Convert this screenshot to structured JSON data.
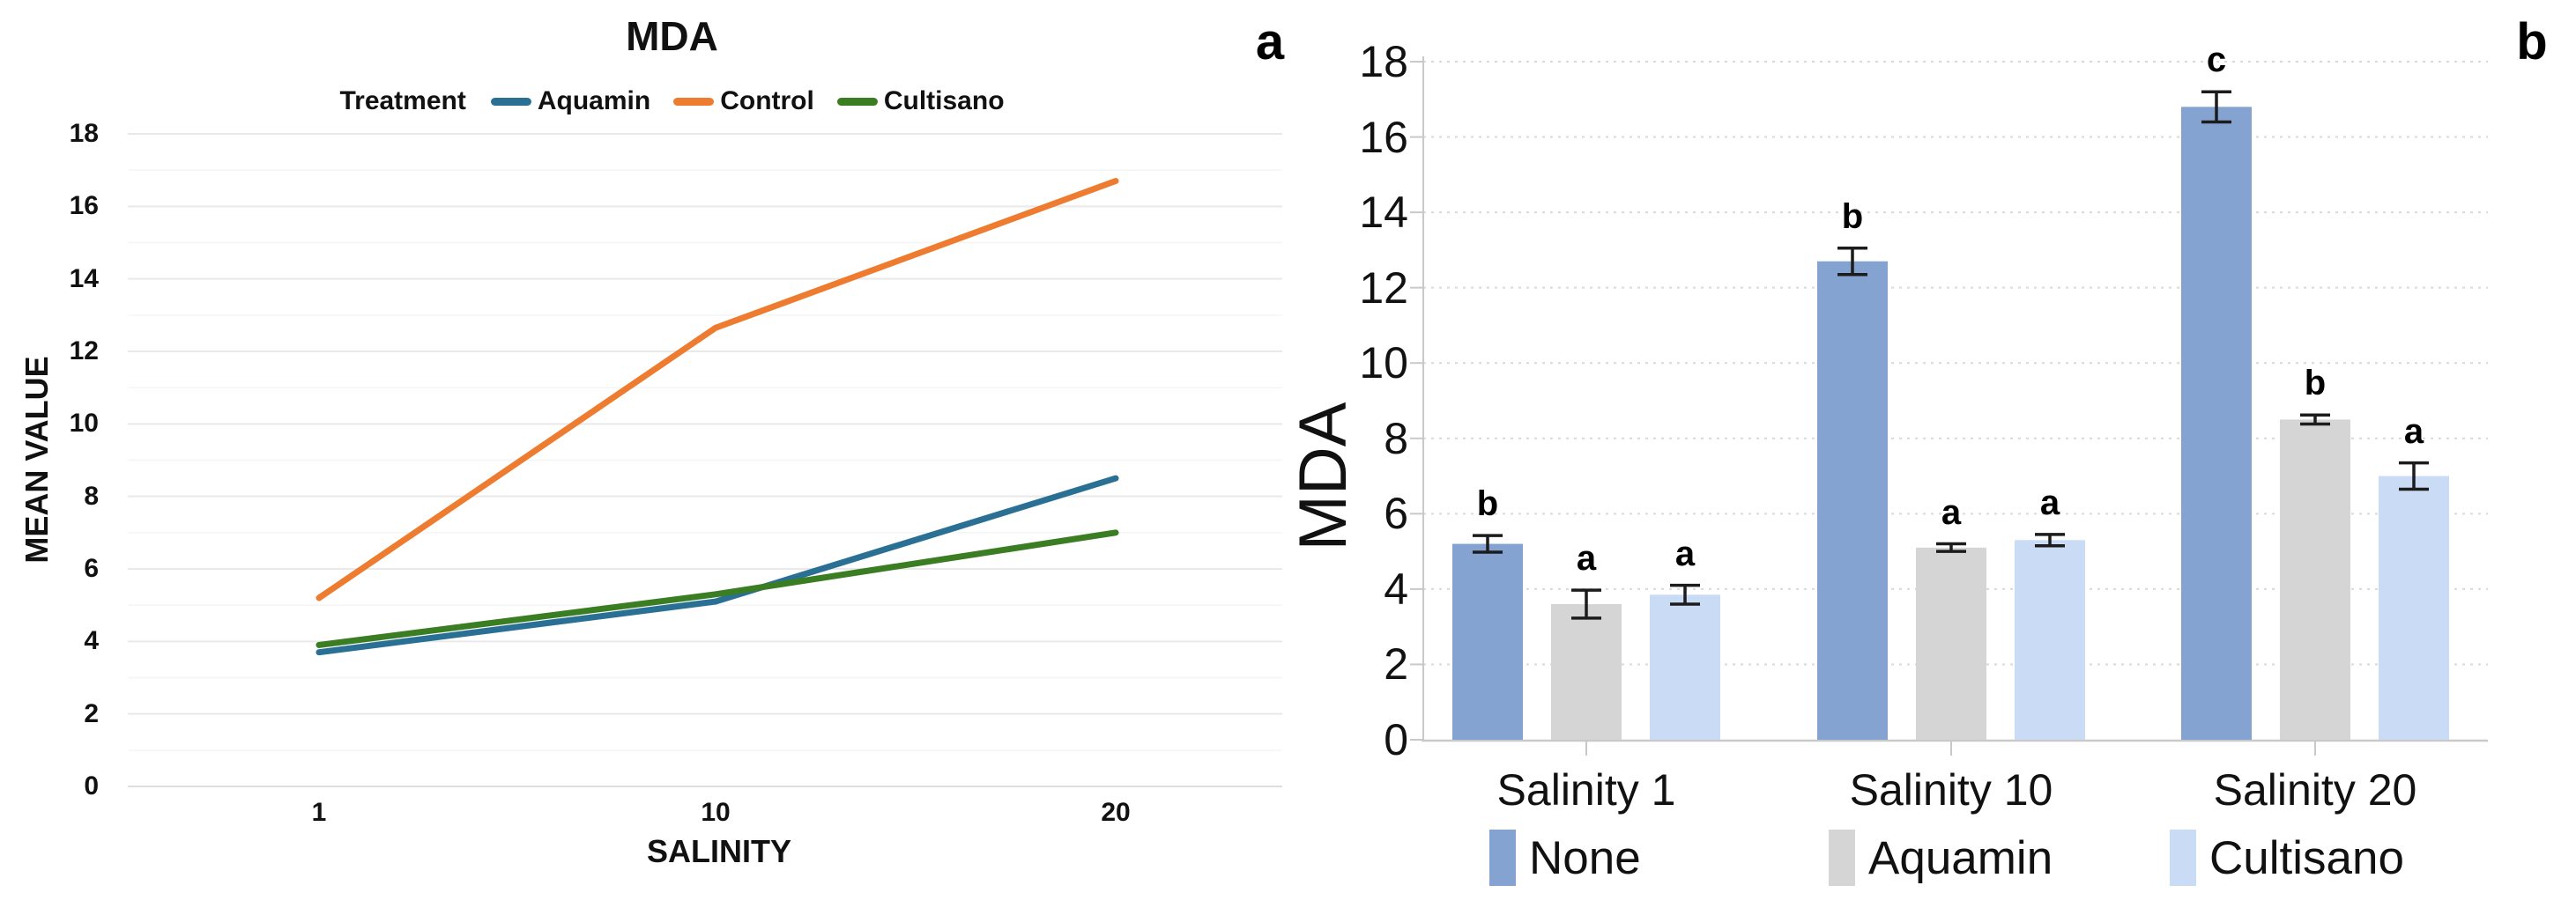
{
  "figure": {
    "background": "#ffffff",
    "text_color": "#111111"
  },
  "panels": {
    "a": "a",
    "b": "b"
  },
  "chart_data": [
    {
      "type": "line",
      "panel_label": "a",
      "title": "MDA",
      "xlabel": "SALINITY",
      "ylabel": "MEAN VALUE",
      "legend_title": "Treatment",
      "legend_position": "top",
      "grid": "horizontal, solid major at even values with faint minor lines",
      "categories": [
        "1",
        "10",
        "20"
      ],
      "x": [
        1,
        10,
        20
      ],
      "ylim": [
        0,
        18
      ],
      "y_tick_step": 2,
      "y_ticks": [
        0,
        2,
        4,
        6,
        8,
        10,
        12,
        14,
        16,
        18
      ],
      "series": [
        {
          "name": "Aquamin",
          "values": [
            3.7,
            5.1,
            8.5
          ],
          "color": "#2a7095"
        },
        {
          "name": "Control",
          "values": [
            5.2,
            12.65,
            16.7
          ],
          "color": "#ee7c30"
        },
        {
          "name": "Cultisano",
          "values": [
            3.9,
            5.3,
            7.0
          ],
          "color": "#3a7d22"
        }
      ]
    },
    {
      "type": "bar",
      "panel_label": "b",
      "title": "",
      "xlabel": "",
      "ylabel": "MDA",
      "legend_position": "bottom",
      "grid": "horizontal, dotted at even values",
      "categories": [
        "Salinity 1",
        "Salinity 10",
        "Salinity 20"
      ],
      "ylim": [
        0,
        18
      ],
      "y_tick_step": 2,
      "y_ticks": [
        0,
        2,
        4,
        6,
        8,
        10,
        12,
        14,
        16,
        18
      ],
      "error_bar_color": "#1c1c1c",
      "series": [
        {
          "name": "None",
          "values": [
            5.2,
            12.7,
            16.8
          ],
          "errors": [
            0.22,
            0.35,
            0.4
          ],
          "sig_letters": [
            "b",
            "b",
            "c"
          ],
          "color": "#84a3d0"
        },
        {
          "name": "Aquamin",
          "values": [
            3.6,
            5.1,
            8.5
          ],
          "errors": [
            0.37,
            0.1,
            0.12
          ],
          "sig_letters": [
            "a",
            "a",
            "b"
          ],
          "color": "#d5d5d5"
        },
        {
          "name": "Cultisano",
          "values": [
            3.85,
            5.3,
            7.0
          ],
          "errors": [
            0.25,
            0.15,
            0.35
          ],
          "sig_letters": [
            "a",
            "a",
            "a"
          ],
          "color": "#cadcf5"
        }
      ]
    }
  ]
}
